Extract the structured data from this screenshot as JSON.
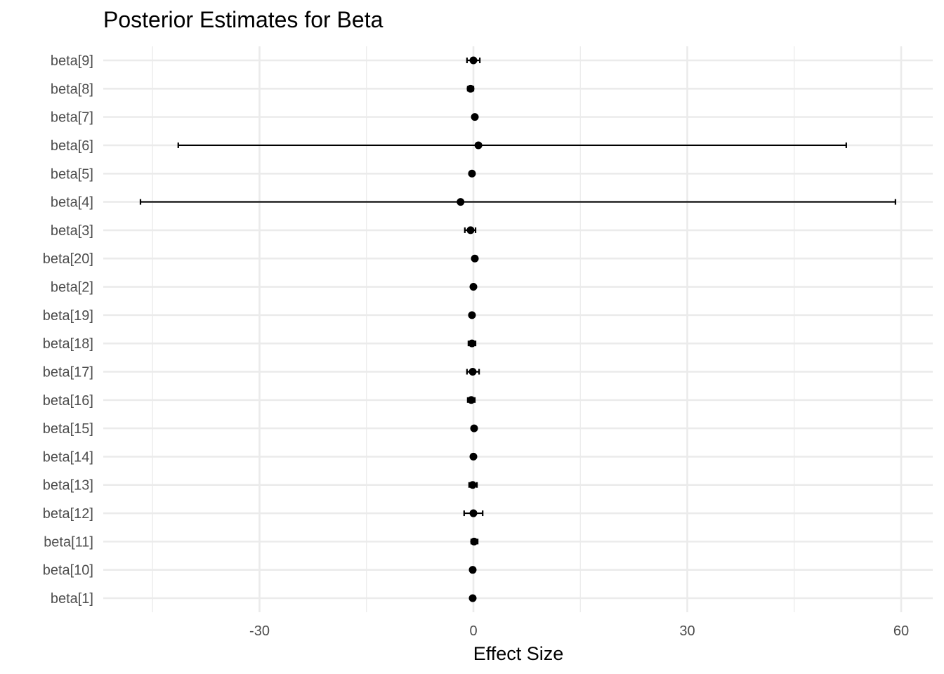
{
  "chart_data": {
    "type": "forest",
    "title": "Posterior Estimates for Beta",
    "xlabel": "Effect Size",
    "ylabel": "",
    "xlim": [
      -45,
      60
    ],
    "x_ticks": [
      -30,
      0,
      30,
      60
    ],
    "x_tick_labels": [
      "-30",
      "0",
      "30",
      "60"
    ],
    "x_minor_ticks": [
      -45,
      -15,
      15,
      45
    ],
    "grid": true,
    "legend": "none",
    "colors": {
      "point": "#000000",
      "errorbar": "#000000",
      "grid": "#ebebeb",
      "tick_text": "#4d4d4d"
    },
    "categories": [
      "beta[1]",
      "beta[10]",
      "beta[11]",
      "beta[12]",
      "beta[13]",
      "beta[14]",
      "beta[15]",
      "beta[16]",
      "beta[17]",
      "beta[18]",
      "beta[19]",
      "beta[2]",
      "beta[20]",
      "beta[3]",
      "beta[4]",
      "beta[5]",
      "beta[6]",
      "beta[7]",
      "beta[8]",
      "beta[9]"
    ],
    "estimate": [
      -0.1,
      -0.1,
      0.1,
      0.0,
      -0.1,
      0.0,
      0.1,
      -0.3,
      -0.1,
      -0.2,
      -0.2,
      0.0,
      0.2,
      -0.4,
      -1.8,
      -0.2,
      0.7,
      0.2,
      -0.4,
      0.0
    ],
    "lower": [
      -0.1,
      -0.1,
      -0.3,
      -1.3,
      -0.6,
      0.0,
      0.1,
      -0.8,
      -0.9,
      -0.7,
      -0.2,
      0.0,
      0.2,
      -1.2,
      -46.7,
      -0.2,
      -41.4,
      0.2,
      -0.8,
      -0.9
    ],
    "upper": [
      -0.1,
      -0.1,
      0.6,
      1.3,
      0.5,
      0.0,
      0.1,
      0.2,
      0.8,
      0.3,
      -0.2,
      0.0,
      0.2,
      0.3,
      59.2,
      -0.2,
      52.3,
      0.2,
      0.0,
      0.9
    ]
  }
}
